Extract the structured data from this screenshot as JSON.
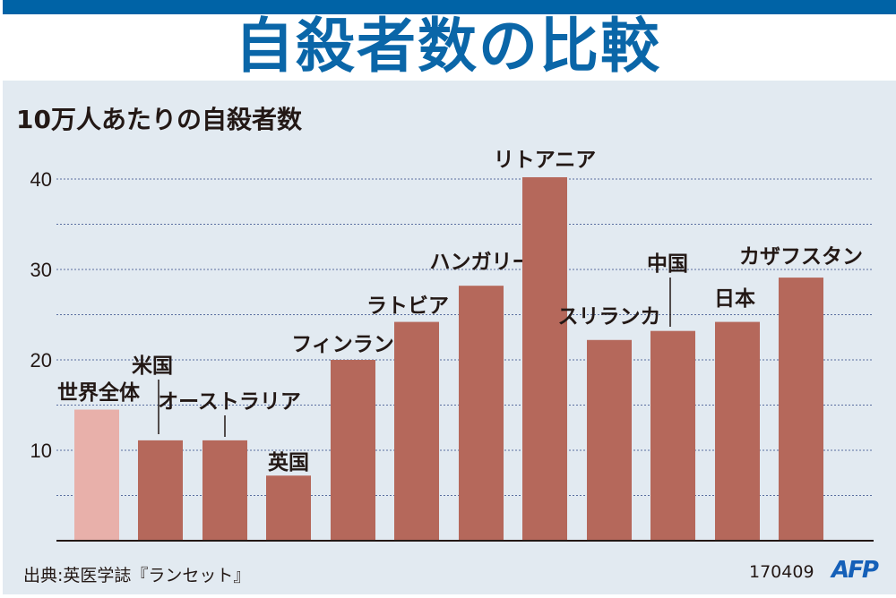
{
  "title": "自殺者数の比較",
  "chart_data": {
    "type": "bar",
    "title": "自殺者数の比較",
    "ylabel": "10万人あたりの自殺者数",
    "categories": [
      "世界全体",
      "米国",
      "オーストラリア",
      "英国",
      "フィンランド",
      "ラトビア",
      "ハンガリー",
      "リトアニア",
      "スリランカ",
      "中国",
      "日本",
      "カザフスタン"
    ],
    "values": [
      14.5,
      11.1,
      11.1,
      7.2,
      20.0,
      24.2,
      28.2,
      40.2,
      22.2,
      23.2,
      24.2,
      29.1
    ],
    "ylim": [
      0,
      40
    ],
    "yticks": [
      "10",
      "20",
      "30",
      "40"
    ],
    "grid": "dashed horizontal every 5",
    "colors": {
      "highlight": "#e8b0aa",
      "bar": "#b5685b",
      "grid": "#5a6fa0",
      "title": "#0a66a8"
    }
  },
  "footer": {
    "source": "出典:英医学誌『ランセット』",
    "code": "170409",
    "logo": "AFP"
  }
}
